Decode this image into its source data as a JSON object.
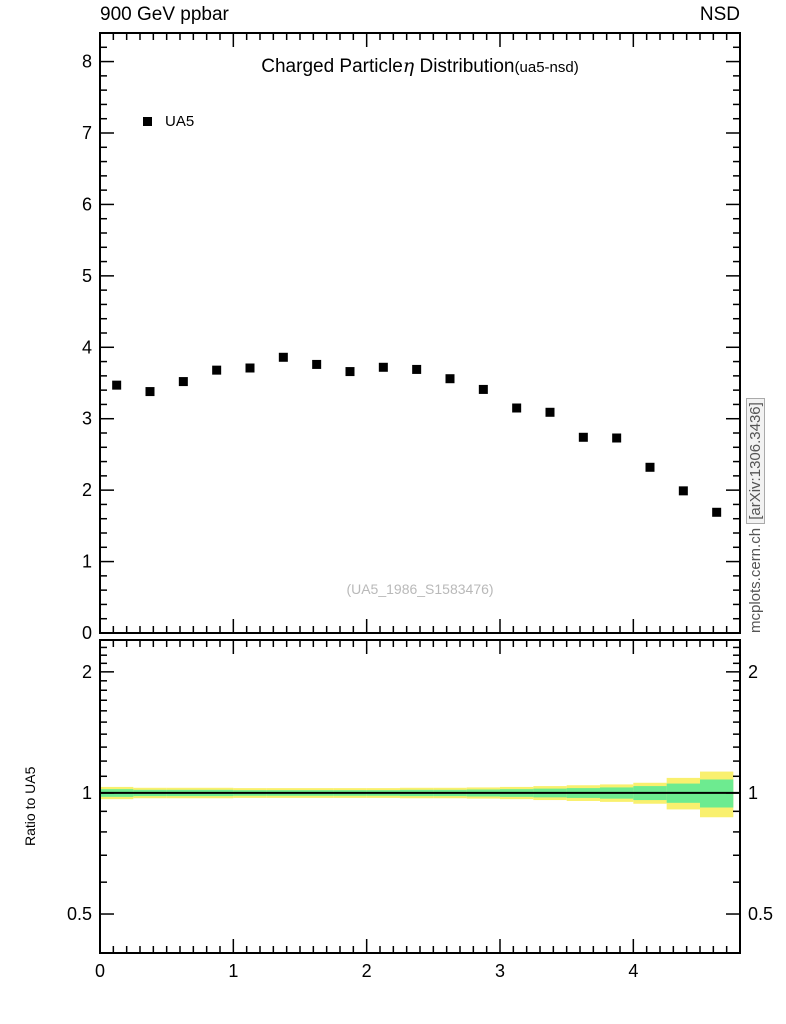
{
  "header": {
    "left": "900 GeV ppbar",
    "right": "NSD"
  },
  "plot": {
    "title_pre": "Charged Particle",
    "title_eta": "η",
    "title_post": " Distribution",
    "title_suffix": "(ua5-nsd)",
    "watermark": "(UA5_1986_S1583476)",
    "side_label_site": "mcplots.cern.ch",
    "side_label_arxiv": "[arXiv:1306.3436]"
  },
  "legend": {
    "items": [
      {
        "label": "UA5",
        "marker": "black-filled-square",
        "color": "#000000"
      }
    ]
  },
  "ratio": {
    "ylabel": "Ratio to UA5"
  },
  "chart_data": {
    "type": "scatter",
    "title": "Charged Particleη Distribution (ua5-nsd)",
    "xlabel": "",
    "ylabel": "",
    "main_panel": {
      "xlim": [
        0,
        4.8
      ],
      "ylim": [
        0,
        8.4
      ],
      "xticks": [
        0,
        1,
        2,
        3,
        4
      ],
      "yticks": [
        0,
        1,
        2,
        3,
        4,
        5,
        6,
        7,
        8
      ],
      "grid": false,
      "legend_position": "top-left",
      "series": [
        {
          "name": "UA5",
          "marker": "filled-square",
          "color": "#000000",
          "x": [
            0.125,
            0.375,
            0.625,
            0.875,
            1.125,
            1.375,
            1.625,
            1.875,
            2.125,
            2.375,
            2.625,
            2.875,
            3.125,
            3.375,
            3.625,
            3.875,
            4.125,
            4.375,
            4.625
          ],
          "y": [
            3.47,
            3.38,
            3.52,
            3.68,
            3.71,
            3.86,
            3.76,
            3.66,
            3.72,
            3.69,
            3.56,
            3.41,
            3.15,
            3.09,
            2.74,
            2.73,
            2.32,
            1.99,
            1.69
          ]
        }
      ]
    },
    "ratio_panel": {
      "ylabel": "Ratio to UA5",
      "yscale": "log",
      "ylim": [
        0.4,
        2.4
      ],
      "yticks": [
        0.5,
        1,
        2
      ],
      "ytick_labels": [
        "0.5",
        "1",
        "2"
      ],
      "line_y": 1,
      "bin_edges": [
        0,
        0.25,
        0.5,
        0.75,
        1,
        1.25,
        1.5,
        1.75,
        2,
        2.25,
        2.5,
        2.75,
        3,
        3.25,
        3.5,
        3.75,
        4,
        4.25,
        4.5,
        4.75
      ],
      "band_outer_halfwidth": [
        0.035,
        0.03,
        0.03,
        0.03,
        0.028,
        0.028,
        0.028,
        0.028,
        0.028,
        0.03,
        0.03,
        0.032,
        0.035,
        0.04,
        0.045,
        0.05,
        0.06,
        0.09,
        0.13
      ],
      "band_inner_halfwidth": [
        0.022,
        0.018,
        0.018,
        0.018,
        0.016,
        0.016,
        0.016,
        0.016,
        0.016,
        0.018,
        0.018,
        0.02,
        0.022,
        0.025,
        0.028,
        0.032,
        0.04,
        0.055,
        0.08
      ],
      "band_outer_color": "#f9f06e",
      "band_inner_color": "#6deb90"
    }
  }
}
